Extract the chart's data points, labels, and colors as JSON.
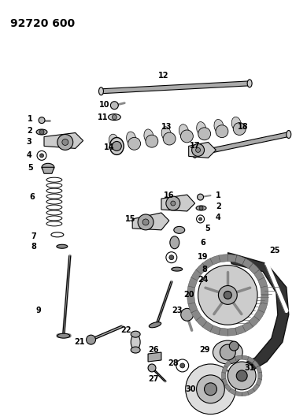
{
  "title": "92720 600",
  "bg_color": "#ffffff",
  "line_color": "#000000",
  "title_fontsize": 10,
  "label_fontsize": 7,
  "label_fontweight": "bold"
}
